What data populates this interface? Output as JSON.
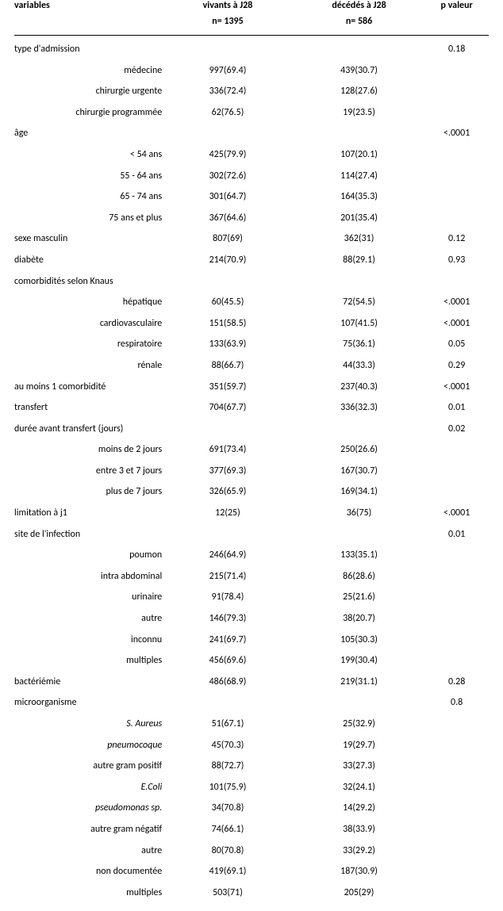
{
  "header": {
    "variables": "variables",
    "vivants": "vivants à J28",
    "decedes": "décédés à J28",
    "pvaleur": "p valeur",
    "n_vivants": "n= 1395",
    "n_decedes": "n= 586"
  },
  "rows": [
    {
      "kind": "main",
      "label": "type d'admission",
      "v": "",
      "d": "",
      "p": "0.18"
    },
    {
      "kind": "sub",
      "label": "médecine",
      "v": "997(69.4)",
      "d": "439(30.7)",
      "p": ""
    },
    {
      "kind": "sub",
      "label": "chirurgie urgente",
      "v": "336(72.4)",
      "d": "128(27.6)",
      "p": ""
    },
    {
      "kind": "sub",
      "label": "chirurgie programmée",
      "v": "62(76.5)",
      "d": "19(23.5)",
      "p": ""
    },
    {
      "kind": "main",
      "label": "âge",
      "v": "",
      "d": "",
      "p": "<.0001"
    },
    {
      "kind": "sub",
      "label": "< 54 ans",
      "v": "425(79.9)",
      "d": "107(20.1)",
      "p": ""
    },
    {
      "kind": "sub",
      "label": "55 - 64 ans",
      "v": "302(72.6)",
      "d": "114(27.4)",
      "p": ""
    },
    {
      "kind": "sub",
      "label": "65 - 74 ans",
      "v": "301(64.7)",
      "d": "164(35.3)",
      "p": ""
    },
    {
      "kind": "sub",
      "label": "75 ans et plus",
      "v": "367(64.6)",
      "d": "201(35.4)",
      "p": ""
    },
    {
      "kind": "main",
      "label": "sexe masculin",
      "v": "807(69)",
      "d": "362(31)",
      "p": "0.12"
    },
    {
      "kind": "main",
      "label": "diabète",
      "v": "214(70.9)",
      "d": "88(29.1)",
      "p": "0.93"
    },
    {
      "kind": "main",
      "label": "comorbidités selon Knaus",
      "v": "",
      "d": "",
      "p": ""
    },
    {
      "kind": "sub",
      "label": "hépatique",
      "v": "60(45.5)",
      "d": "72(54.5)",
      "p": "<.0001"
    },
    {
      "kind": "sub",
      "label": "cardiovasculaire",
      "v": "151(58.5)",
      "d": "107(41.5)",
      "p": "<.0001"
    },
    {
      "kind": "sub",
      "label": "respiratoire",
      "v": "133(63.9)",
      "d": "75(36.1)",
      "p": "0.05"
    },
    {
      "kind": "sub",
      "label": "rénale",
      "v": "88(66.7)",
      "d": "44(33.3)",
      "p": "0.29"
    },
    {
      "kind": "main",
      "label": "au moins 1 comorbidité",
      "v": "351(59.7)",
      "d": "237(40.3)",
      "p": "<.0001"
    },
    {
      "kind": "main",
      "label": "transfert",
      "v": "704(67.7)",
      "d": "336(32.3)",
      "p": "0.01"
    },
    {
      "kind": "main",
      "label": "durée avant transfert (jours)",
      "v": "",
      "d": "",
      "p": "0.02"
    },
    {
      "kind": "sub",
      "label": "moins de 2 jours",
      "v": "691(73.4)",
      "d": "250(26.6)",
      "p": ""
    },
    {
      "kind": "sub",
      "label": "entre 3 et 7 jours",
      "v": "377(69.3)",
      "d": "167(30.7)",
      "p": ""
    },
    {
      "kind": "sub",
      "label": "plus de 7 jours",
      "v": "326(65.9)",
      "d": "169(34.1)",
      "p": ""
    },
    {
      "kind": "main",
      "label": "limitation à j1",
      "v": "12(25)",
      "d": "36(75)",
      "p": "<.0001"
    },
    {
      "kind": "main",
      "label": "site de l'infection",
      "v": "",
      "d": "",
      "p": "0.01"
    },
    {
      "kind": "sub",
      "label": "poumon",
      "v": "246(64.9)",
      "d": "133(35.1)",
      "p": ""
    },
    {
      "kind": "sub",
      "label": "intra abdominal",
      "v": "215(71.4)",
      "d": "86(28.6)",
      "p": ""
    },
    {
      "kind": "sub",
      "label": "urinaire",
      "v": "91(78.4)",
      "d": "25(21.6)",
      "p": ""
    },
    {
      "kind": "sub",
      "label": "autre",
      "v": "146(79.3)",
      "d": "38(20.7)",
      "p": ""
    },
    {
      "kind": "sub",
      "label": "inconnu",
      "v": "241(69.7)",
      "d": "105(30.3)",
      "p": ""
    },
    {
      "kind": "sub",
      "label": "multiples",
      "v": "456(69.6)",
      "d": "199(30.4)",
      "p": ""
    },
    {
      "kind": "main",
      "label": "bactériémie",
      "v": "486(68.9)",
      "d": "219(31.1)",
      "p": "0.28"
    },
    {
      "kind": "main",
      "label": "microorganisme",
      "v": "",
      "d": "",
      "p": "0.8"
    },
    {
      "kind": "sub-it",
      "label": "S. Aureus",
      "v": "51(67.1)",
      "d": "25(32.9)",
      "p": ""
    },
    {
      "kind": "sub-it",
      "label": "pneumocoque",
      "v": "45(70.3)",
      "d": "19(29.7)",
      "p": ""
    },
    {
      "kind": "sub",
      "label": "autre gram positif",
      "v": "88(72.7)",
      "d": "33(27.3)",
      "p": ""
    },
    {
      "kind": "sub-it",
      "label": "E.Coli",
      "v": "101(75.9)",
      "d": "32(24.1)",
      "p": ""
    },
    {
      "kind": "sub-it",
      "label": "pseudomonas sp.",
      "v": "34(70.8)",
      "d": "14(29.2)",
      "p": ""
    },
    {
      "kind": "sub",
      "label": "autre gram négatif",
      "v": "74(66.1)",
      "d": "38(33.9)",
      "p": ""
    },
    {
      "kind": "sub",
      "label": "autre",
      "v": "80(70.8)",
      "d": "33(29.2)",
      "p": ""
    },
    {
      "kind": "sub",
      "label": "non documentée",
      "v": "419(69.1)",
      "d": "187(30.9)",
      "p": ""
    },
    {
      "kind": "sub",
      "label": "multiples",
      "v": "503(71)",
      "d": "205(29)",
      "p": ""
    }
  ]
}
